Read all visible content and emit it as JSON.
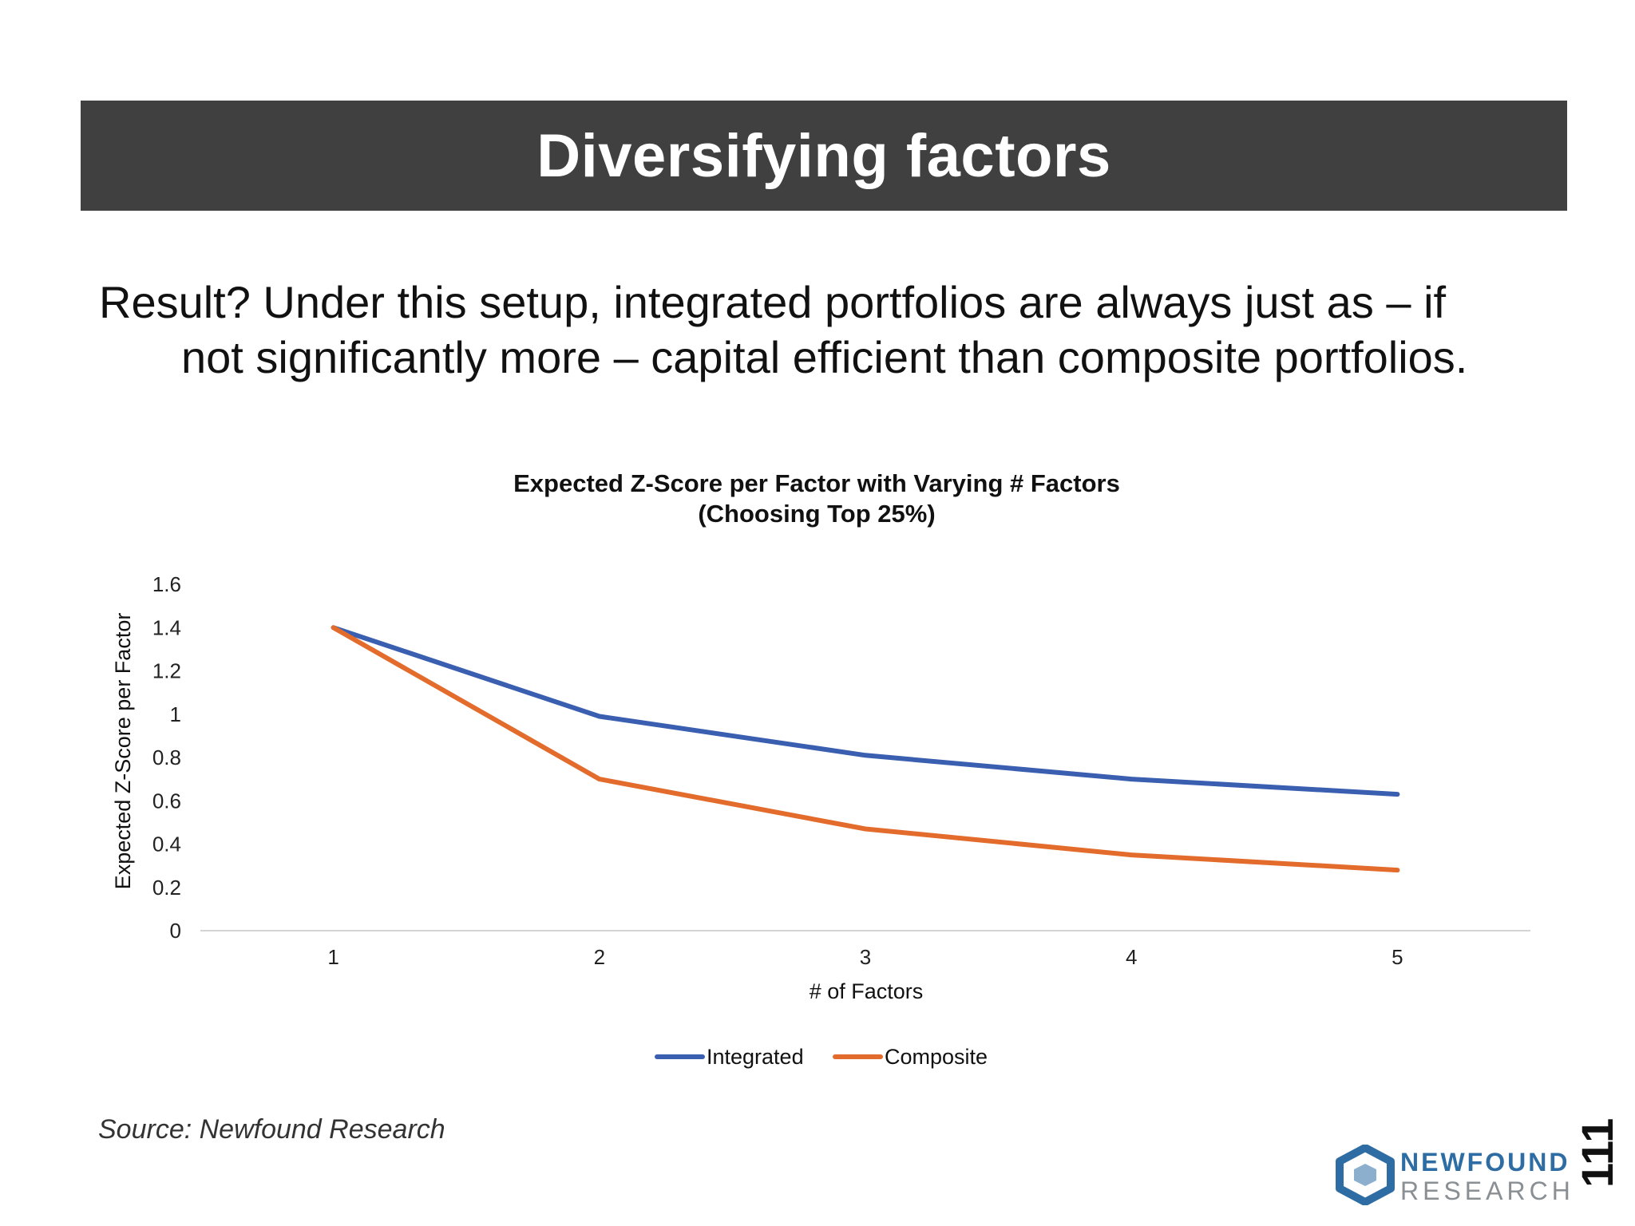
{
  "slide": {
    "title": "Diversifying factors",
    "body_line1": "Result?  Under this setup, integrated portfolios are always just as – if",
    "body_line2": "not significantly more – capital efficient than composite portfolios.",
    "source": "Source: Newfound Research",
    "page_number": "111"
  },
  "logo": {
    "line1": "NEWFOUND",
    "line2": "RESEARCH",
    "color_primary": "#2e6da4",
    "color_text1": "#2e6da4",
    "color_text2": "#8a8f94"
  },
  "chart_data": {
    "type": "line",
    "title": "Expected Z-Score per Factor with Varying # Factors",
    "subtitle": "(Choosing Top 25%)",
    "xlabel": "# of Factors",
    "ylabel": "Expected Z-Score per Factor",
    "x": [
      1,
      2,
      3,
      4,
      5
    ],
    "x_tick_labels": [
      "1",
      "2",
      "3",
      "4",
      "5"
    ],
    "ylim": [
      0,
      1.6
    ],
    "y_ticks": [
      0,
      0.2,
      0.4,
      0.6,
      0.8,
      1,
      1.2,
      1.4,
      1.6
    ],
    "y_tick_labels": [
      "0",
      "0.2",
      "0.4",
      "0.6",
      "0.8",
      "1",
      "1.2",
      "1.4",
      "1.6"
    ],
    "grid": false,
    "legend_position": "bottom",
    "series": [
      {
        "name": "Integrated",
        "color": "#3a5fb0",
        "values": [
          1.4,
          0.99,
          0.81,
          0.7,
          0.63
        ]
      },
      {
        "name": "Composite",
        "color": "#e36b2c",
        "values": [
          1.4,
          0.7,
          0.47,
          0.35,
          0.28
        ]
      }
    ]
  }
}
